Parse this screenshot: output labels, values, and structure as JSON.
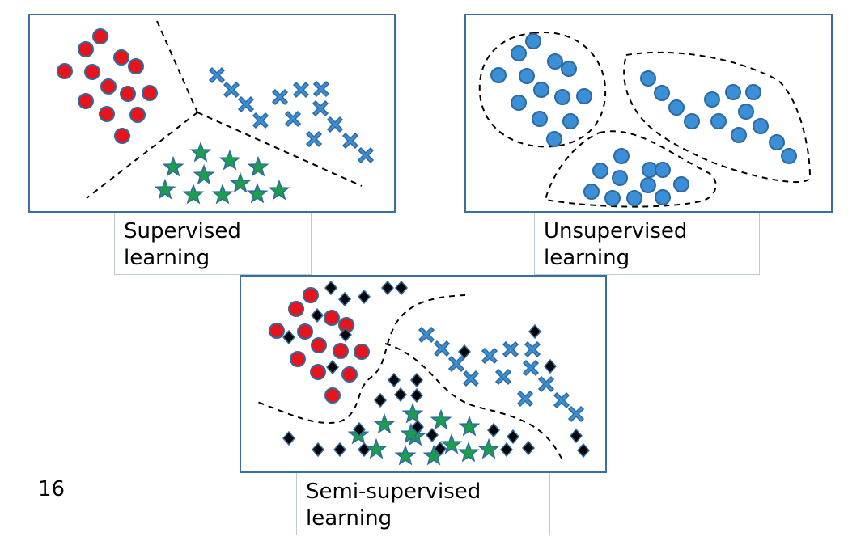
{
  "panels": {
    "supervised": {
      "caption_line1": "Supervised",
      "caption_line2": "learning"
    },
    "unsupervised": {
      "caption_line1": "Unsupervised",
      "caption_line2": "learning"
    },
    "semi_supervised": {
      "caption_line1": "Semi-supervised",
      "caption_line2": "learning"
    }
  },
  "page_number": "16",
  "colors": {
    "frame": "#3a6e9c",
    "red_class": "#e8141c",
    "blue_class": "#3b8fd6",
    "green_class": "#1d9e4a",
    "unlabeled": "#000000"
  },
  "markers": {
    "class_a": "red-circle",
    "class_b": "blue-cross",
    "class_c": "green-star",
    "unlabeled": "black-diamond",
    "cluster": "blue-circle"
  }
}
